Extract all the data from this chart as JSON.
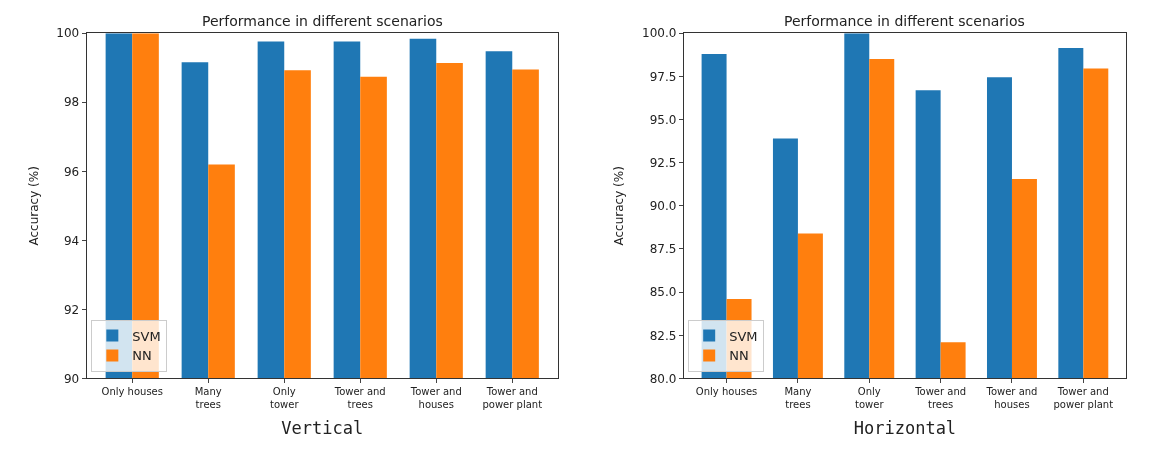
{
  "chart_data": [
    {
      "type": "bar",
      "title": "Performance in different scenarios",
      "xlabel": "Vertical",
      "ylabel": "Accuracy (%)",
      "categories": [
        "Only houses",
        "Many\ntrees",
        "Only\ntower",
        "Tower and\ntrees",
        "Tower and\nhouses",
        "Tower and\npower plant"
      ],
      "series": [
        {
          "name": "SVM",
          "color": "#1f77b4",
          "values": [
            100,
            99.16,
            99.76,
            99.76,
            99.84,
            99.48
          ]
        },
        {
          "name": "NN",
          "color": "#ff7f0e",
          "values": [
            100,
            96.2,
            98.93,
            98.74,
            99.14,
            98.95
          ]
        }
      ],
      "ylim": [
        90,
        100
      ],
      "yticks": [
        90,
        92,
        94,
        96,
        98,
        100
      ],
      "legend": "bottom left"
    },
    {
      "type": "bar",
      "title": "Performance in different scenarios",
      "xlabel": "Horizontal",
      "ylabel": "Accuracy (%)",
      "categories": [
        "Only houses",
        "Many\ntrees",
        "Only\ntower",
        "Tower and\ntrees",
        "Tower and\nhouses",
        "Tower and\npower plant"
      ],
      "series": [
        {
          "name": "SVM",
          "color": "#1f77b4",
          "values": [
            98.8,
            93.9,
            100,
            96.7,
            97.45,
            99.15
          ]
        },
        {
          "name": "NN",
          "color": "#ff7f0e",
          "values": [
            84.6,
            88.4,
            98.5,
            82.1,
            91.55,
            97.95
          ]
        }
      ],
      "ylim": [
        80,
        100
      ],
      "yticks": [
        {
          "value": 80,
          "label": "80.0"
        },
        {
          "value": 82.5,
          "label": "82.5"
        },
        {
          "value": 85,
          "label": "85.0"
        },
        {
          "value": 87.5,
          "label": "87.5"
        },
        {
          "value": 90,
          "label": "90.0"
        },
        {
          "value": 92.5,
          "label": "92.5"
        },
        {
          "value": 95,
          "label": "95.0"
        },
        {
          "value": 97.5,
          "label": "97.5"
        },
        {
          "value": 100,
          "label": "100.0"
        }
      ],
      "legend": "bottom left"
    }
  ]
}
